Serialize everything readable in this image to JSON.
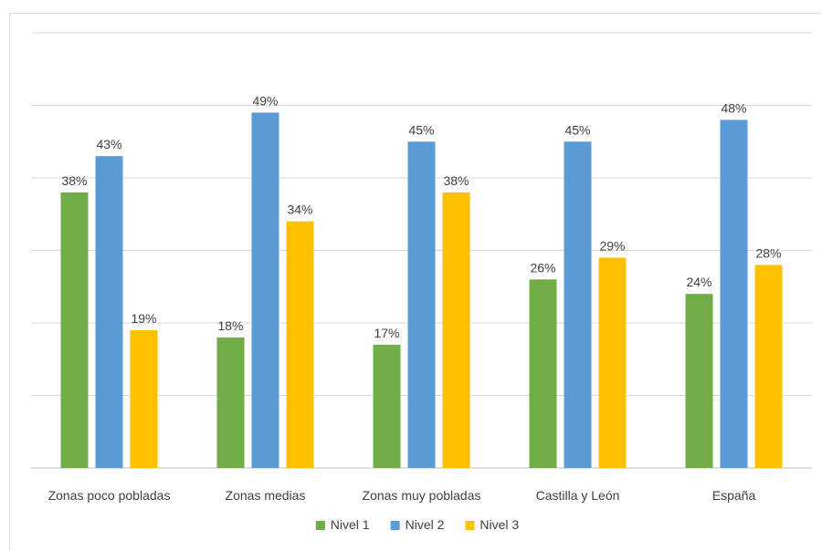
{
  "chart_data": {
    "type": "bar",
    "categories": [
      "Zonas poco pobladas",
      "Zonas medias",
      "Zonas muy pobladas",
      "Castilla y León",
      "España"
    ],
    "series": [
      {
        "name": "Nivel 1",
        "color": "#70ad47",
        "values": [
          38,
          18,
          17,
          26,
          24
        ],
        "labels": [
          "38%",
          "18%",
          "17%",
          "26%",
          "24%"
        ]
      },
      {
        "name": "Nivel 2",
        "color": "#5b9bd5",
        "values": [
          43,
          49,
          45,
          45,
          48
        ],
        "labels": [
          "43%",
          "49%",
          "45%",
          "45%",
          "48%"
        ]
      },
      {
        "name": "Nivel 3",
        "color": "#ffc000",
        "values": [
          19,
          34,
          38,
          29,
          28
        ],
        "labels": [
          "19%",
          "34%",
          "38%",
          "29%",
          "28%"
        ]
      }
    ],
    "title": "",
    "xlabel": "",
    "ylabel": "",
    "ylim": [
      0,
      60
    ],
    "gridlines": true,
    "legend_position": "bottom",
    "y_tick_labels_visible": false
  }
}
